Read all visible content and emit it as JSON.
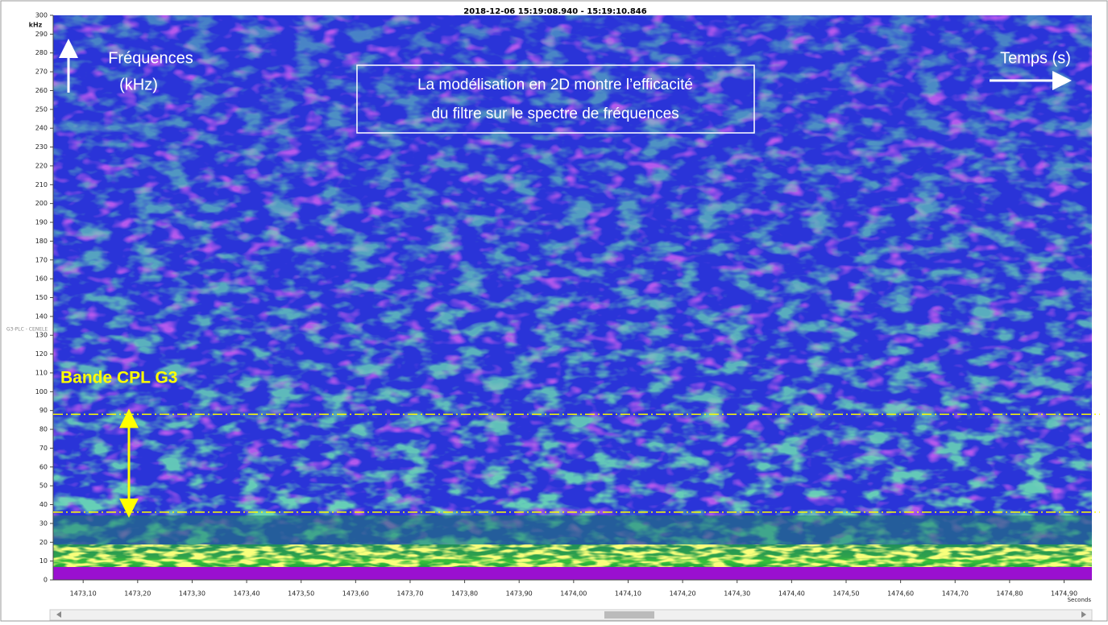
{
  "chart_data": {
    "type": "spectrogram",
    "title": "2018-12-06 15:19:08.940 - 15:19:10.846",
    "y_unit": "kHz",
    "x_unit": "Seconds",
    "channel_label": "G3-PLC - CENELE",
    "ylim": [
      0,
      300
    ],
    "yticks": [
      0,
      10,
      20,
      30,
      40,
      50,
      60,
      70,
      80,
      90,
      100,
      110,
      120,
      130,
      140,
      150,
      160,
      170,
      180,
      190,
      200,
      210,
      220,
      230,
      240,
      250,
      260,
      270,
      280,
      290,
      300
    ],
    "xlim": [
      1473.045,
      1474.951
    ],
    "xticks": [
      {
        "value": 1473.1,
        "label": "1473,10"
      },
      {
        "value": 1473.2,
        "label": "1473,20"
      },
      {
        "value": 1473.3,
        "label": "1473,30"
      },
      {
        "value": 1473.4,
        "label": "1473,40"
      },
      {
        "value": 1473.5,
        "label": "1473,50"
      },
      {
        "value": 1473.6,
        "label": "1473,60"
      },
      {
        "value": 1473.7,
        "label": "1473,70"
      },
      {
        "value": 1473.8,
        "label": "1473,80"
      },
      {
        "value": 1473.9,
        "label": "1473,90"
      },
      {
        "value": 1474.0,
        "label": "1474,00"
      },
      {
        "value": 1474.1,
        "label": "1474,10"
      },
      {
        "value": 1474.2,
        "label": "1474,20"
      },
      {
        "value": 1474.3,
        "label": "1474,30"
      },
      {
        "value": 1474.4,
        "label": "1474,40"
      },
      {
        "value": 1474.5,
        "label": "1474,50"
      },
      {
        "value": 1474.6,
        "label": "1474,60"
      },
      {
        "value": 1474.7,
        "label": "1474,70"
      },
      {
        "value": 1474.8,
        "label": "1474,80"
      },
      {
        "value": 1474.9,
        "label": "1474,90"
      }
    ],
    "annotations": {
      "frequency_label": [
        "Fréquences",
        "(kHz)"
      ],
      "time_label": "Temps (s)",
      "note": [
        "La modélisation en 2D montre l’efficacité",
        "du filtre sur le spectre de fréquences"
      ],
      "band": {
        "label": "Bande CPL G3",
        "range": [
          36,
          88
        ],
        "color": "#ffff00"
      }
    }
  }
}
